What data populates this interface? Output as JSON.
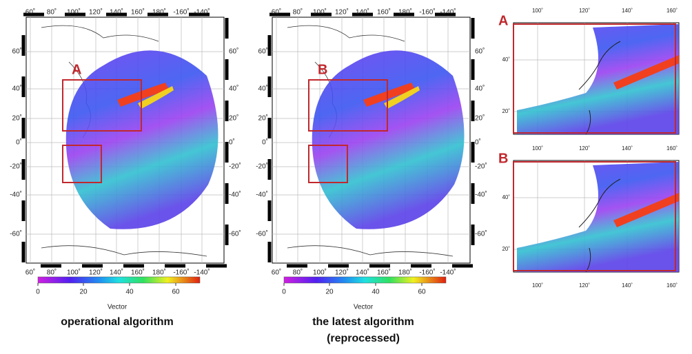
{
  "panels": [
    {
      "label": "A",
      "lon_labels": [
        "60˚",
        "80˚",
        "100˚",
        "120˚",
        "140˚",
        "160˚",
        "180˚",
        "-160˚",
        "-140˚"
      ],
      "lat_labels": [
        "60˚",
        "40˚",
        "20˚",
        "0˚",
        "-20˚",
        "-40˚",
        "-60˚"
      ],
      "colorbar": {
        "ticks": [
          "0",
          "20",
          "40",
          "60"
        ],
        "title": "Vector"
      },
      "caption": [
        "operational algorithm"
      ]
    },
    {
      "label": "B",
      "lon_labels": [
        "60˚",
        "80˚",
        "100˚",
        "120˚",
        "140˚",
        "160˚",
        "180˚",
        "-160˚",
        "-140˚"
      ],
      "lat_labels": [
        "60˚",
        "40˚",
        "20˚",
        "0˚",
        "-20˚",
        "-40˚",
        "-60˚"
      ],
      "colorbar": {
        "ticks": [
          "0",
          "20",
          "40",
          "60"
        ],
        "title": "Vector"
      },
      "caption": [
        "the latest algorithm",
        "(reprocessed)"
      ]
    }
  ],
  "zooms": [
    {
      "label": "A",
      "lon_labels": [
        "100˚",
        "120˚",
        "140˚",
        "160˚"
      ],
      "lat_labels": [
        "40˚",
        "20˚"
      ]
    },
    {
      "label": "B",
      "lon_labels": [
        "100˚",
        "120˚",
        "140˚",
        "160˚"
      ],
      "lat_labels": [
        "40˚",
        "20˚"
      ]
    }
  ]
}
